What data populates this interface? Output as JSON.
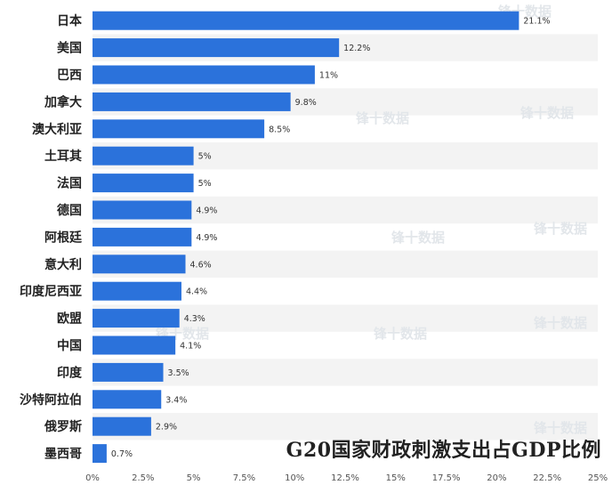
{
  "chart_data": {
    "type": "bar",
    "orientation": "horizontal",
    "title": "G20国家财政刺激支出占GDP比例",
    "categories": [
      "日本",
      "美国",
      "巴西",
      "加拿大",
      "澳大利亚",
      "土耳其",
      "法国",
      "德国",
      "阿根廷",
      "意大利",
      "印度尼西亚",
      "欧盟",
      "中国",
      "印度",
      "沙特阿拉伯",
      "俄罗斯",
      "墨西哥"
    ],
    "values": [
      21.1,
      12.2,
      11,
      9.8,
      8.5,
      5,
      5,
      4.9,
      4.9,
      4.6,
      4.4,
      4.3,
      4.1,
      3.5,
      3.4,
      2.9,
      0.7
    ],
    "data_labels": [
      "21.1%",
      "12.2%",
      "11%",
      "9.8%",
      "8.5%",
      "5%",
      "5%",
      "4.9%",
      "4.9%",
      "4.6%",
      "4.4%",
      "4.3%",
      "4.1%",
      "3.5%",
      "3.4%",
      "2.9%",
      "0.7%"
    ],
    "x_ticks": [
      "0%",
      "2.5%",
      "5%",
      "7.5%",
      "10%",
      "12.5%",
      "15%",
      "17.5%",
      "20%",
      "22.5%",
      "25%"
    ],
    "xlim": [
      0,
      25
    ],
    "xlabel": "",
    "ylabel": "",
    "bar_color": "#2B72DB",
    "stripe_color": "#F3F3F3",
    "grid": false,
    "legend": "none"
  },
  "watermark": {
    "text": "锋十数据"
  }
}
